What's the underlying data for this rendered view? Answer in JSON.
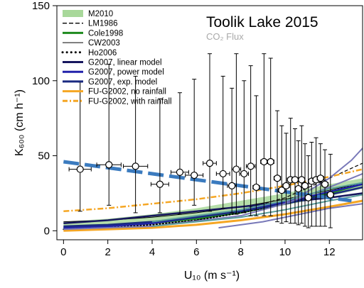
{
  "chart_data": {
    "type": "line",
    "title": "Toolik Lake 2015",
    "subtitle": "CO₂ Flux",
    "xlabel": "U₁₀ (m s⁻¹)",
    "ylabel": "K₆₀₀ (cm h⁻¹)",
    "xlim": [
      -0.3,
      13.5
    ],
    "ylim": [
      -6,
      150
    ],
    "xticks": [
      0,
      2,
      4,
      6,
      8,
      10,
      12
    ],
    "yticks": [
      0,
      50,
      100,
      150
    ],
    "grid": false,
    "legend_position": "top-left",
    "legend": [
      {
        "label": "M2010",
        "style": "band",
        "color": "#a8d89a"
      },
      {
        "label": "LM1986",
        "style": "dashed",
        "color": "#000000"
      },
      {
        "label": "Cole1998",
        "style": "solid-thick",
        "color": "#1e8a1e"
      },
      {
        "label": "CW2003",
        "style": "solid-thin",
        "color": "#000000"
      },
      {
        "label": "Ho2006",
        "style": "dotted",
        "color": "#000000"
      },
      {
        "label": "G2007, linear model",
        "style": "solid-thick",
        "color": "#17175e"
      },
      {
        "label": "G2007, power model",
        "style": "solid-thick",
        "color": "#2222aa"
      },
      {
        "label": "G2007, exp. model",
        "style": "solid-thick",
        "color": "#1a2a80"
      },
      {
        "label": "FU-G2002, no rainfall",
        "style": "solid-thick",
        "color": "#f5a623"
      },
      {
        "label": "FU-G2002, with rainfall",
        "style": "dashdot",
        "color": "#f5a623"
      }
    ],
    "band": {
      "name": "M2010",
      "color": "#a8d89a",
      "x": [
        0,
        2,
        4,
        6,
        8,
        10,
        12,
        13.5
      ],
      "lower": [
        2,
        3,
        5,
        8,
        12,
        17,
        23,
        28
      ],
      "upper": [
        6,
        8,
        11,
        15,
        20,
        25,
        31,
        35
      ]
    },
    "lines": [
      {
        "name": "LM1986",
        "color": "#000000",
        "width": 1.2,
        "dash": "5,3",
        "x": [
          0,
          2,
          3.6,
          4,
          6,
          8,
          10,
          12,
          13.5
        ],
        "y": [
          1,
          1.5,
          2,
          3,
          7,
          14,
          22,
          35,
          45
        ]
      },
      {
        "name": "Cole1998",
        "color": "#1e8a1e",
        "width": 2.5,
        "dash": "",
        "x": [
          0,
          2,
          4,
          6,
          8,
          10,
          12,
          13.5
        ],
        "y": [
          2,
          3,
          5,
          8,
          12,
          18,
          25,
          31
        ]
      },
      {
        "name": "CW2003",
        "color": "#000000",
        "width": 1,
        "dash": "",
        "x": [
          0,
          2,
          4,
          6,
          8,
          10,
          12,
          13.5
        ],
        "y": [
          6,
          7,
          9,
          12,
          16,
          21,
          27,
          32
        ]
      },
      {
        "name": "Ho2006",
        "color": "#000000",
        "width": 2,
        "dash": "1.5,3",
        "x": [
          0,
          2,
          4,
          6,
          8,
          10,
          12,
          13.5
        ],
        "y": [
          1,
          2,
          4,
          7,
          12,
          18,
          26,
          32
        ]
      },
      {
        "name": "G2007, linear model",
        "color": "#17175e",
        "width": 2.5,
        "dash": "",
        "x": [
          0,
          2,
          4,
          6,
          8,
          10,
          12,
          13.5
        ],
        "y": [
          5,
          7,
          10,
          13,
          16,
          19,
          22,
          25
        ]
      },
      {
        "name": "G2007, power model",
        "color": "#2222aa",
        "width": 2.5,
        "dash": "",
        "x": [
          0,
          2,
          4,
          6,
          8,
          10,
          12,
          13.5
        ],
        "y": [
          2,
          3,
          5,
          9,
          13,
          19,
          26,
          31
        ]
      },
      {
        "name": "G2007, exp. model",
        "color": "#1a2a80",
        "width": 2.5,
        "dash": "",
        "x": [
          0,
          2,
          4,
          6,
          8,
          10,
          12,
          13.5
        ],
        "y": [
          3,
          4,
          6,
          9,
          13,
          18,
          24,
          29
        ]
      },
      {
        "name": "FU-G2002, no rainfall",
        "color": "#f5a623",
        "width": 3,
        "dash": "",
        "x": [
          0,
          2,
          4,
          6,
          8,
          10,
          12,
          13.5
        ],
        "y": [
          0,
          1,
          2,
          4,
          7,
          11,
          16,
          20
        ]
      },
      {
        "name": "FU-G2002, with rainfall",
        "color": "#f5a623",
        "width": 2.5,
        "dash": "8,3,2,3",
        "x": [
          0,
          2,
          4,
          6,
          8,
          10,
          12,
          13.5
        ],
        "y": [
          13,
          15,
          18,
          21,
          25,
          30,
          36,
          41
        ]
      },
      {
        "name": "purple-steep",
        "color": "#7878b8",
        "width": 2,
        "dash": "",
        "x": [
          10,
          11,
          12,
          13,
          13.5
        ],
        "y": [
          19,
          26,
          35,
          47,
          55
        ]
      },
      {
        "name": "purple-mid",
        "color": "#7878b8",
        "width": 2,
        "dash": "",
        "x": [
          0,
          4,
          8,
          10,
          12,
          13.5
        ],
        "y": [
          1,
          3,
          10,
          18,
          29,
          38
        ]
      },
      {
        "name": "purple-low",
        "color": "#7878b8",
        "width": 2,
        "dash": "",
        "x": [
          7,
          9,
          10,
          12,
          13.5
        ],
        "y": [
          2,
          6,
          9,
          15,
          18
        ]
      },
      {
        "name": "teal-upper",
        "color": "#5a9e9a",
        "width": 2,
        "dash": "",
        "x": [
          4,
          8,
          10,
          12,
          13.5
        ],
        "y": [
          6,
          14,
          20,
          28,
          32
        ]
      },
      {
        "name": "teal-lower",
        "color": "#5a9e9a",
        "width": 2,
        "dash": "",
        "x": [
          4,
          8,
          10,
          12,
          13.5
        ],
        "y": [
          3,
          9,
          14,
          20,
          24
        ]
      }
    ],
    "fit_line": {
      "name": "fit",
      "color": "#3b7bbf",
      "width": 5,
      "dash": "22,8",
      "x": [
        0,
        13
      ],
      "y": [
        46,
        20
      ]
    },
    "points": [
      {
        "x": 0.75,
        "y": 41,
        "xerr": 0.5,
        "ylo": 13,
        "yhi": 99
      },
      {
        "x": 2.05,
        "y": 44,
        "xerr": 0.55,
        "ylo": 17,
        "yhi": 111
      },
      {
        "x": 3.25,
        "y": 43,
        "xerr": 0.55,
        "ylo": 12,
        "yhi": 103
      },
      {
        "x": 4.35,
        "y": 31,
        "xerr": 0.4,
        "ylo": 12,
        "yhi": 88
      },
      {
        "x": 5.25,
        "y": 39,
        "xerr": 0.4,
        "ylo": 11,
        "yhi": 92
      },
      {
        "x": 5.9,
        "y": 37,
        "xerr": 0.4,
        "ylo": 17,
        "yhi": 101
      },
      {
        "x": 6.6,
        "y": 45,
        "xerr": 0.3,
        "ylo": 13,
        "yhi": 118
      },
      {
        "x": 7.2,
        "y": 38,
        "xerr": 0.3,
        "ylo": 15,
        "yhi": 103
      },
      {
        "x": 7.6,
        "y": 30,
        "xerr": 0.2,
        "ylo": 12,
        "yhi": 95
      },
      {
        "x": 7.8,
        "y": 41,
        "xerr": 0.2,
        "ylo": 11,
        "yhi": 118
      },
      {
        "x": 8.15,
        "y": 38,
        "xerr": 0.2,
        "ylo": 12,
        "yhi": 100
      },
      {
        "x": 8.45,
        "y": 43,
        "xerr": 0.2,
        "ylo": 10,
        "yhi": 110
      },
      {
        "x": 8.7,
        "y": 29,
        "xerr": 0.15,
        "ylo": 10,
        "yhi": 90
      },
      {
        "x": 9.05,
        "y": 46,
        "xerr": 0.15,
        "ylo": 10,
        "yhi": 118
      },
      {
        "x": 9.35,
        "y": 46,
        "xerr": 0.15,
        "ylo": 10,
        "yhi": 115
      },
      {
        "x": 9.65,
        "y": 35,
        "xerr": 0.15,
        "ylo": 6,
        "yhi": 80
      },
      {
        "x": 9.85,
        "y": 27,
        "xerr": 0.15,
        "ylo": 5,
        "yhi": 70
      },
      {
        "x": 10.05,
        "y": 30,
        "xerr": 0.15,
        "ylo": 6,
        "yhi": 65
      },
      {
        "x": 10.25,
        "y": 34,
        "xerr": 0.15,
        "ylo": 5,
        "yhi": 75
      },
      {
        "x": 10.45,
        "y": 34,
        "xerr": 0.15,
        "ylo": 5,
        "yhi": 68
      },
      {
        "x": 10.6,
        "y": 28,
        "xerr": 0.15,
        "ylo": 4,
        "yhi": 60
      },
      {
        "x": 10.75,
        "y": 34,
        "xerr": 0.15,
        "ylo": 5,
        "yhi": 70
      },
      {
        "x": 10.9,
        "y": 30,
        "xerr": 0.15,
        "ylo": 3,
        "yhi": 58
      },
      {
        "x": 11.05,
        "y": 22,
        "xerr": 0.15,
        "ylo": 2,
        "yhi": 50
      },
      {
        "x": 11.2,
        "y": 33,
        "xerr": 0.15,
        "ylo": 3,
        "yhi": 59
      },
      {
        "x": 11.4,
        "y": 34,
        "xerr": 0.15,
        "ylo": 3,
        "yhi": 62
      },
      {
        "x": 11.6,
        "y": 35,
        "xerr": 0.15,
        "ylo": 3,
        "yhi": 58
      },
      {
        "x": 11.8,
        "y": 31,
        "xerr": 0.15,
        "ylo": 3,
        "yhi": 54
      },
      {
        "x": 12.05,
        "y": 24,
        "xerr": 0.15,
        "ylo": 2,
        "yhi": 51
      }
    ]
  }
}
